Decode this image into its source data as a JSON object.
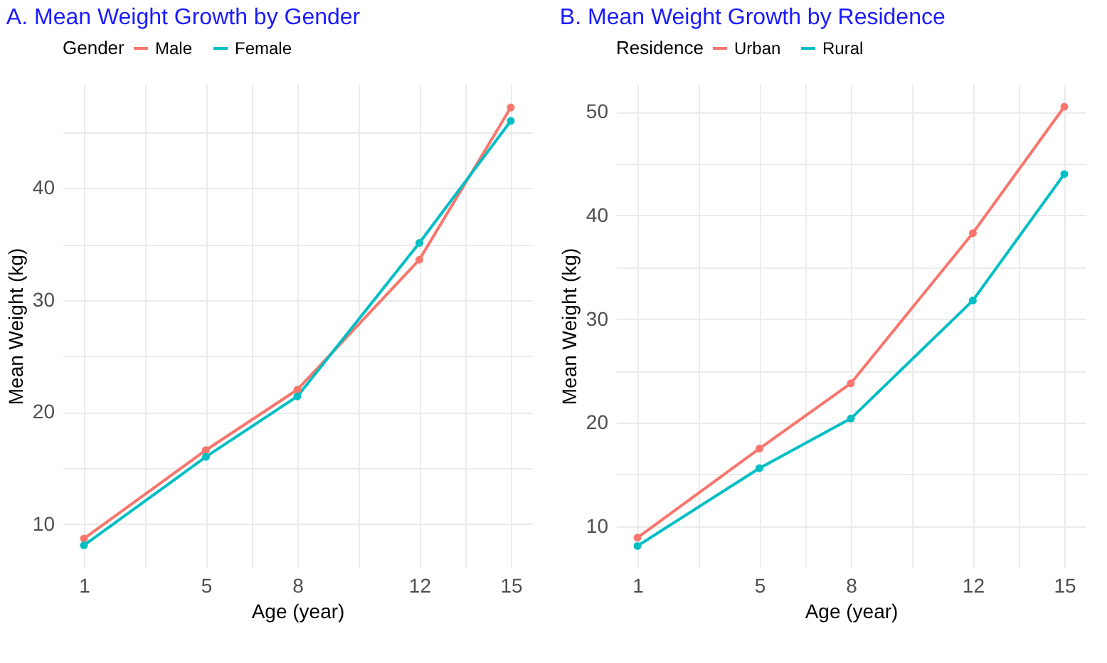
{
  "chart_data": [
    {
      "type": "line",
      "title": "A. Mean Weight Growth by Gender",
      "xlabel": "Age (year)",
      "ylabel": "Mean Weight (kg)",
      "legend_title": "Gender",
      "legend": "top",
      "grid": true,
      "marker": "circle",
      "line_style": "solid",
      "x": [
        1,
        5,
        8,
        12,
        15
      ],
      "series": [
        {
          "name": "Male",
          "color": "#f8766d",
          "values": [
            8.7,
            16.6,
            22.0,
            33.6,
            47.2
          ]
        },
        {
          "name": "Female",
          "color": "#00bfc4",
          "values": [
            8.1,
            16.0,
            21.4,
            35.1,
            46.0
          ]
        }
      ],
      "xlim": [
        0.3,
        15.7
      ],
      "xticks": [
        1,
        {
          "value": 3,
          "label": null
        },
        5,
        {
          "value": 6.5,
          "label": null
        },
        8,
        {
          "value": 10,
          "label": null
        },
        12,
        {
          "value": 13.5,
          "label": null
        },
        15
      ],
      "ylim": [
        6.1,
        49.3
      ],
      "yticks": [
        10,
        {
          "value": 15,
          "label": null
        },
        20,
        {
          "value": 25,
          "label": null
        },
        30,
        {
          "value": 35,
          "label": null
        },
        40,
        {
          "value": 45,
          "label": null
        }
      ]
    },
    {
      "type": "line",
      "title": "B. Mean Weight Growth by Residence",
      "xlabel": "Age (year)",
      "ylabel": "Mean Weight (kg)",
      "legend_title": "Residence",
      "legend": "top",
      "grid": true,
      "marker": "circle",
      "line_style": "solid",
      "x": [
        1,
        5,
        8,
        12,
        15
      ],
      "series": [
        {
          "name": "Urban",
          "color": "#f8766d",
          "values": [
            8.9,
            17.5,
            23.8,
            38.3,
            50.5
          ]
        },
        {
          "name": "Rural",
          "color": "#00bfc4",
          "values": [
            8.1,
            15.6,
            20.4,
            31.8,
            44.0
          ]
        }
      ],
      "xlim": [
        0.3,
        15.7
      ],
      "xticks": [
        1,
        {
          "value": 3,
          "label": null
        },
        5,
        {
          "value": 6.5,
          "label": null
        },
        8,
        {
          "value": 10,
          "label": null
        },
        12,
        {
          "value": 13.5,
          "label": null
        },
        15
      ],
      "ylim": [
        6.0,
        52.7
      ],
      "yticks": [
        10,
        {
          "value": 15,
          "label": null
        },
        20,
        {
          "value": 25,
          "label": null
        },
        30,
        {
          "value": 35,
          "label": null
        },
        40,
        {
          "value": 45,
          "label": null
        },
        50
      ]
    }
  ]
}
